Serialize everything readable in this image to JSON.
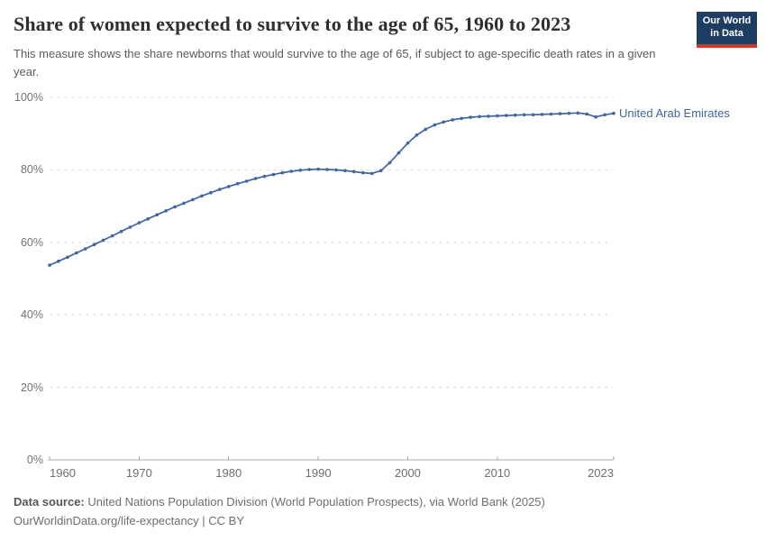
{
  "chart_data": {
    "type": "line",
    "title": "Share of women expected to survive to the age of 65, 1960 to 2023",
    "subtitle": "This measure shows the share newborns that would survive to the age of 65, if subject to age-specific death rates in a given year.",
    "xlabel": "",
    "ylabel": "",
    "ylim": [
      0,
      100
    ],
    "yticks": [
      0,
      20,
      40,
      60,
      80,
      100
    ],
    "ytick_suffix": "%",
    "xticks": [
      1960,
      1970,
      1980,
      1990,
      2000,
      2010,
      2023
    ],
    "grid": "horizontal-dashed",
    "legend_position": "line-end-label",
    "x": [
      1960,
      1961,
      1962,
      1963,
      1964,
      1965,
      1966,
      1967,
      1968,
      1969,
      1970,
      1971,
      1972,
      1973,
      1974,
      1975,
      1976,
      1977,
      1978,
      1979,
      1980,
      1981,
      1982,
      1983,
      1984,
      1985,
      1986,
      1987,
      1988,
      1989,
      1990,
      1991,
      1992,
      1993,
      1994,
      1995,
      1996,
      1997,
      1998,
      1999,
      2000,
      2001,
      2002,
      2003,
      2004,
      2005,
      2006,
      2007,
      2008,
      2009,
      2010,
      2011,
      2012,
      2013,
      2014,
      2015,
      2016,
      2017,
      2018,
      2019,
      2020,
      2021,
      2022,
      2023
    ],
    "series": [
      {
        "name": "United Arab Emirates",
        "color": "#4065a3",
        "values": [
          53.7,
          54.8,
          55.9,
          57.1,
          58.2,
          59.4,
          60.6,
          61.8,
          63.0,
          64.2,
          65.4,
          66.5,
          67.6,
          68.7,
          69.8,
          70.8,
          71.8,
          72.8,
          73.7,
          74.6,
          75.4,
          76.2,
          76.9,
          77.6,
          78.2,
          78.7,
          79.2,
          79.6,
          79.9,
          80.1,
          80.2,
          80.1,
          80.0,
          79.8,
          79.5,
          79.2,
          79.0,
          79.8,
          82.0,
          84.7,
          87.4,
          89.6,
          91.2,
          92.4,
          93.2,
          93.8,
          94.2,
          94.5,
          94.7,
          94.8,
          94.9,
          95.0,
          95.1,
          95.2,
          95.2,
          95.3,
          95.4,
          95.5,
          95.6,
          95.7,
          95.4,
          94.6,
          95.2,
          95.6
        ]
      }
    ]
  },
  "header": {
    "logo_line1": "Our World",
    "logo_line2": "in Data",
    "logo_bg_color": "#1d3d63",
    "logo_accent_color": "#d7352c"
  },
  "colors": {
    "gridline": "#dedede",
    "axis": "#a9a9a9",
    "tick_label": "#6e6e6e"
  },
  "footer": {
    "source_label": "Data source:",
    "source_text": "United Nations Population Division (World Population Prospects), via World Bank (2025)",
    "note": "OurWorldinData.org/life-expectancy | CC BY"
  }
}
